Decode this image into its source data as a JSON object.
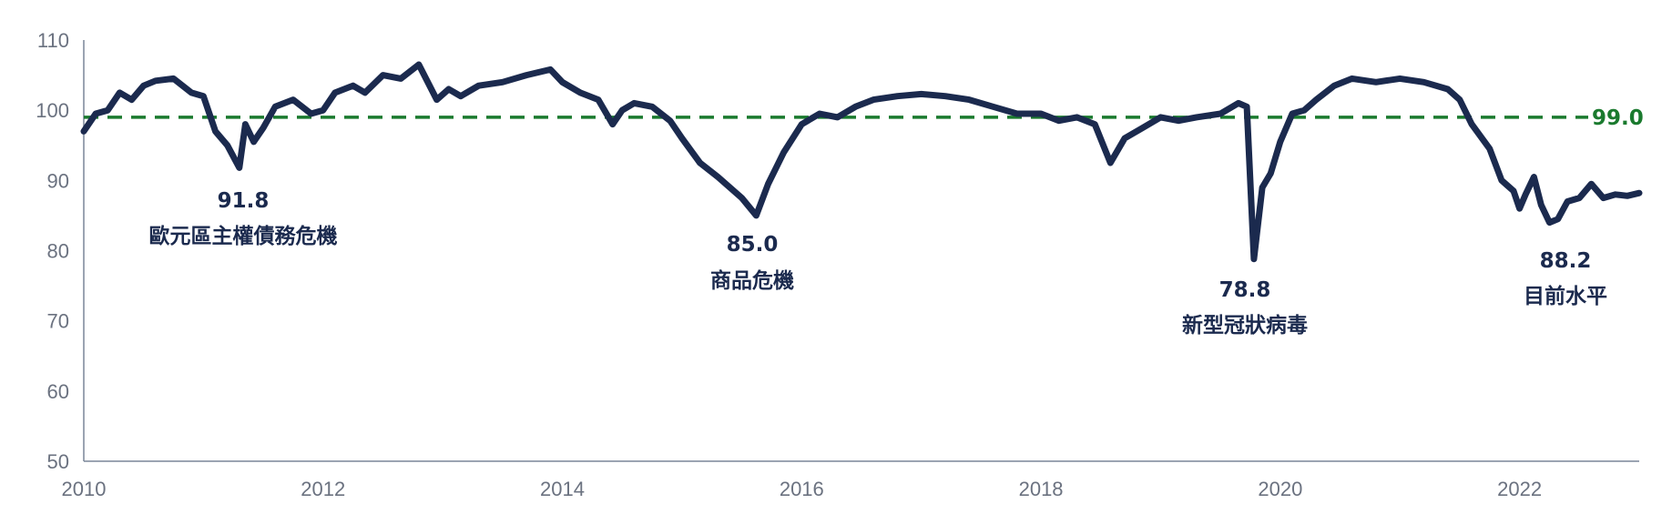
{
  "chart_data": {
    "type": "line",
    "title": "",
    "xlabel": "",
    "ylabel": "",
    "xlim": [
      2010,
      2023.0
    ],
    "ylim": [
      50,
      110
    ],
    "y_ticks": [
      50,
      60,
      70,
      80,
      90,
      100,
      110
    ],
    "x_ticks": [
      2010,
      2012,
      2014,
      2016,
      2018,
      2020,
      2022
    ],
    "x_tick_labels": [
      "2010",
      "2012",
      "2014",
      "2016",
      "2018",
      "2020",
      "2022"
    ],
    "y_tick_labels": [
      "50",
      "60",
      "70",
      "80",
      "90",
      "100",
      "110"
    ],
    "grid": false,
    "line_color": "#1b2a4e",
    "reference_color": "#1a7a2e",
    "reference_line": {
      "value": 99.0,
      "label": "99.0"
    },
    "series": [
      {
        "x": [
          2010.0,
          2010.1,
          2010.2,
          2010.3,
          2010.4,
          2010.5,
          2010.6,
          2010.75,
          2010.9,
          2011.0,
          2011.1,
          2011.2,
          2011.3,
          2011.35,
          2011.42,
          2011.5,
          2011.6,
          2011.75,
          2011.9,
          2012.0,
          2012.1,
          2012.25,
          2012.35,
          2012.5,
          2012.65,
          2012.8,
          2012.95,
          2013.05,
          2013.15,
          2013.3,
          2013.5,
          2013.7,
          2013.9,
          2014.0,
          2014.15,
          2014.3,
          2014.42,
          2014.5,
          2014.6,
          2014.75,
          2014.9,
          2015.0,
          2015.15,
          2015.3,
          2015.5,
          2015.62,
          2015.72,
          2015.85,
          2016.0,
          2016.15,
          2016.3,
          2016.45,
          2016.6,
          2016.8,
          2017.0,
          2017.2,
          2017.4,
          2017.6,
          2017.8,
          2018.0,
          2018.15,
          2018.3,
          2018.45,
          2018.58,
          2018.7,
          2018.85,
          2019.0,
          2019.15,
          2019.3,
          2019.5,
          2019.65,
          2019.72,
          2019.78,
          2019.85,
          2019.92,
          2020.0,
          2020.1,
          2020.2,
          2020.3,
          2020.45,
          2020.6,
          2020.8,
          2021.0,
          2021.2,
          2021.4,
          2021.5,
          2021.6,
          2021.75,
          2021.85,
          2021.95,
          2022.0,
          2022.05,
          2022.12,
          2022.18,
          2022.25,
          2022.32,
          2022.4,
          2022.5,
          2022.6,
          2022.7,
          2022.8,
          2022.9,
          2023.0
        ],
        "values": [
          97.0,
          99.5,
          100.0,
          102.5,
          101.5,
          103.5,
          104.2,
          104.5,
          102.5,
          102.0,
          97.0,
          95.0,
          91.8,
          98.0,
          95.5,
          97.5,
          100.5,
          101.5,
          99.5,
          100.0,
          102.5,
          103.5,
          102.5,
          105.0,
          104.5,
          106.5,
          101.5,
          103.0,
          102.0,
          103.5,
          104.0,
          105.0,
          105.8,
          104.0,
          102.5,
          101.5,
          98.0,
          100.0,
          101.0,
          100.5,
          98.5,
          96.0,
          92.5,
          90.5,
          87.5,
          85.0,
          89.5,
          94.0,
          98.0,
          99.5,
          99.0,
          100.5,
          101.5,
          102.0,
          102.3,
          102.0,
          101.5,
          100.5,
          99.5,
          99.5,
          98.5,
          99.0,
          98.0,
          92.5,
          96.0,
          97.5,
          99.0,
          98.5,
          99.0,
          99.5,
          101.0,
          100.5,
          78.8,
          89.0,
          91.0,
          95.5,
          99.5,
          100.0,
          101.5,
          103.5,
          104.5,
          104.0,
          104.5,
          104.0,
          103.0,
          101.5,
          98.0,
          94.5,
          90.0,
          88.5,
          86.0,
          88.0,
          90.5,
          86.5,
          84.0,
          84.5,
          87.0,
          87.5,
          89.5,
          87.5,
          88.0,
          87.8,
          88.2
        ]
      }
    ],
    "annotations": [
      {
        "id": "euro",
        "x": 2011.3,
        "y": 91.8,
        "value_label": "91.8",
        "text": "歐元區主權債務危機"
      },
      {
        "id": "commodity",
        "x": 2015.62,
        "y": 85.0,
        "value_label": "85.0",
        "text": "商品危機"
      },
      {
        "id": "covid",
        "x": 2019.78,
        "y": 78.8,
        "value_label": "78.8",
        "text": "新型冠狀病毒"
      },
      {
        "id": "current",
        "x": 2022.9,
        "y": 88.2,
        "value_label": "88.2",
        "text": "目前水平"
      }
    ]
  }
}
